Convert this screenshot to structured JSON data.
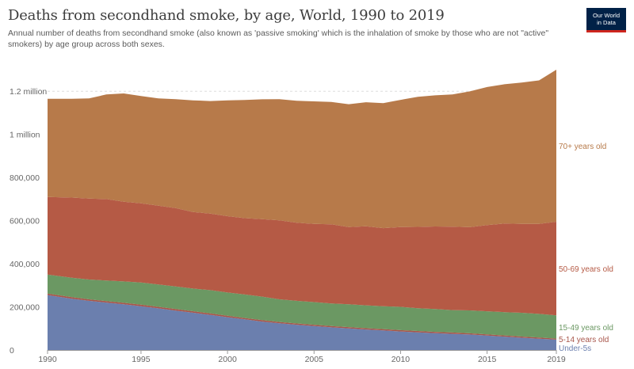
{
  "header": {
    "title": "Deaths from secondhand smoke, by age, World, 1990 to 2019",
    "subtitle": "Annual number of deaths from secondhand smoke (also known as 'passive smoking' which is the inhalation of smoke by those who are not \"active\" smokers) by age group across both sexes.",
    "logo_line1": "Our World",
    "logo_line2": "in Data"
  },
  "chart_data": {
    "type": "area",
    "stacked": true,
    "title": "Deaths from secondhand smoke, by age, World, 1990 to 2019",
    "xlabel": "",
    "ylabel": "",
    "x": [
      1989.6,
      1991,
      1992,
      1993,
      1994,
      1995,
      1996,
      1997,
      1998,
      1999,
      2000,
      2001,
      2002,
      2003,
      2004,
      2005,
      2006,
      2007,
      2008,
      2009,
      2010,
      2011,
      2012,
      2013,
      2014,
      2015,
      2016,
      2017,
      2018,
      2019
    ],
    "xlim": [
      1989.6,
      2019
    ],
    "ylim": [
      0,
      1300000
    ],
    "x_ticks": [
      {
        "value": 1989.6,
        "label": "1990"
      },
      {
        "value": 1995,
        "label": "1995"
      },
      {
        "value": 2000,
        "label": "2000"
      },
      {
        "value": 2005,
        "label": "2005"
      },
      {
        "value": 2010,
        "label": "2010"
      },
      {
        "value": 2015,
        "label": "2015"
      },
      {
        "value": 2019,
        "label": "2019"
      }
    ],
    "y_ticks": [
      {
        "value": 0,
        "label": "0"
      },
      {
        "value": 200000,
        "label": "200,000"
      },
      {
        "value": 400000,
        "label": "400,000"
      },
      {
        "value": 600000,
        "label": "600,000"
      },
      {
        "value": 800000,
        "label": "800,000"
      },
      {
        "value": 1000000,
        "label": "1 million"
      },
      {
        "value": 1200000,
        "label": "1.2 million"
      }
    ],
    "grid": true,
    "legend": "inline-right",
    "series": [
      {
        "name": "Under-5s",
        "color": "#6b7fae",
        "values": [
          255000,
          238000,
          228000,
          220000,
          212000,
          203000,
          193000,
          183000,
          173000,
          163000,
          152000,
          142000,
          132000,
          124000,
          117000,
          111000,
          105000,
          100000,
          95000,
          91000,
          86000,
          82000,
          78000,
          75000,
          72000,
          67000,
          62000,
          57000,
          52000,
          48000
        ]
      },
      {
        "name": "5-14 years old",
        "color": "#a8564b",
        "values": [
          7000,
          7000,
          7000,
          7000,
          7000,
          7000,
          7000,
          7000,
          7000,
          6500,
          6500,
          6500,
          6500,
          6000,
          6000,
          6000,
          6000,
          6000,
          6000,
          6000,
          6000,
          6000,
          6000,
          6000,
          5500,
          5500,
          5500,
          5500,
          5500,
          5000
        ]
      },
      {
        "name": "15-49 years old",
        "color": "#6b9863",
        "values": [
          88000,
          90000,
          92000,
          95000,
          99000,
          103000,
          104000,
          105000,
          105000,
          108000,
          108000,
          109000,
          109000,
          105000,
          105000,
          105000,
          105000,
          106000,
          106000,
          106000,
          108000,
          106000,
          106000,
          104000,
          106000,
          107000,
          108000,
          110000,
          110000,
          108000
        ]
      },
      {
        "name": "50-69 years old",
        "color": "#b55a45",
        "values": [
          360000,
          372000,
          375000,
          378000,
          370000,
          367000,
          365000,
          363000,
          355000,
          355000,
          354000,
          354000,
          359000,
          366000,
          362000,
          363000,
          367000,
          358000,
          367000,
          362000,
          370000,
          377000,
          383000,
          387000,
          386000,
          400000,
          411000,
          412000,
          417000,
          434000
        ]
      },
      {
        "name": "70+ years old",
        "color": "#b77a4a",
        "values": [
          455000,
          458000,
          465000,
          485000,
          502000,
          498000,
          498000,
          505000,
          518000,
          522000,
          537000,
          548000,
          556000,
          562000,
          566000,
          568000,
          567000,
          570000,
          575000,
          580000,
          590000,
          603000,
          608000,
          613000,
          630000,
          640000,
          646000,
          656000,
          666000,
          705000
        ]
      }
    ]
  }
}
